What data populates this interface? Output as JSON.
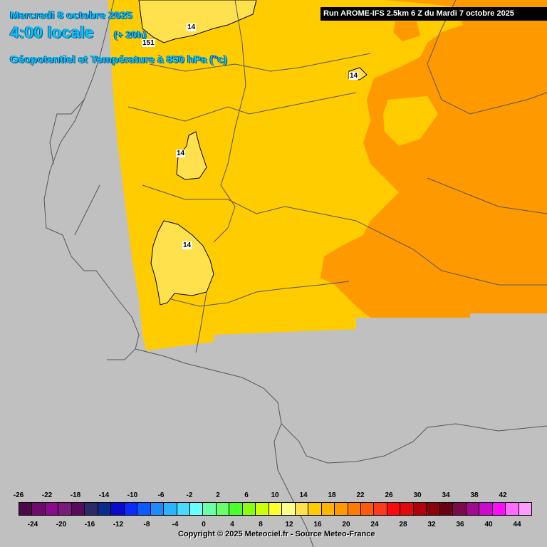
{
  "header": {
    "date": "Mercredi 8 octobre 2025",
    "time": "4:00 locale",
    "lead": "(+ 20h)",
    "parameter": "Géopotentiel et Température à 850 hPa (°c)",
    "run": "Run AROME-IFS 2.5km 6 Z du Mardi 7 octobre 2025"
  },
  "map_labels": {
    "iso_14_a": "14",
    "iso_151": "151",
    "iso_14_b": "14",
    "iso_14_c": "14",
    "iso_14_d": "14"
  },
  "colors": {
    "background": "#c0c0c0",
    "field_12_14": "#ffcc00",
    "field_14_16": "#ffe14e",
    "field_16_18": "#ff9900",
    "header_text": "#00c8ff"
  },
  "legend": {
    "top_ticks": [
      "-26",
      "-22",
      "-18",
      "-14",
      "-10",
      "-6",
      "-2",
      "2",
      "6",
      "10",
      "14",
      "18",
      "22",
      "26",
      "30",
      "34",
      "38",
      "42"
    ],
    "bottom_ticks": [
      "-24",
      "-20",
      "-16",
      "-12",
      "-8",
      "-4",
      "0",
      "4",
      "8",
      "12",
      "16",
      "20",
      "24",
      "28",
      "32",
      "36",
      "40",
      "44"
    ],
    "colors": [
      "#4a0a4a",
      "#6e0a6e",
      "#8c0a8c",
      "#7a1a7a",
      "#5a0a5a",
      "#2a2a6a",
      "#0a2a8c",
      "#0a0acc",
      "#0a2aff",
      "#0a5aff",
      "#1a8cff",
      "#2ab4ff",
      "#4ad8ff",
      "#6affff",
      "#6affaa",
      "#6aff6a",
      "#4aff2a",
      "#8cff0a",
      "#ccff0a",
      "#ffff2a",
      "#ffff8c",
      "#ffe14e",
      "#ffcc00",
      "#ffb400",
      "#ff9900",
      "#ff7a00",
      "#ff5a0a",
      "#ff3a1a",
      "#ff0a0a",
      "#e00a0a",
      "#b4000a",
      "#8c000a",
      "#6a0014",
      "#7a0a4a",
      "#a00a8c",
      "#cc0acc",
      "#ff0aff",
      "#ff6aff",
      "#ff9aff"
    ]
  },
  "footer": {
    "copyright": "Copyright © 2025 Meteociel.fr - Source Meteo-France"
  }
}
